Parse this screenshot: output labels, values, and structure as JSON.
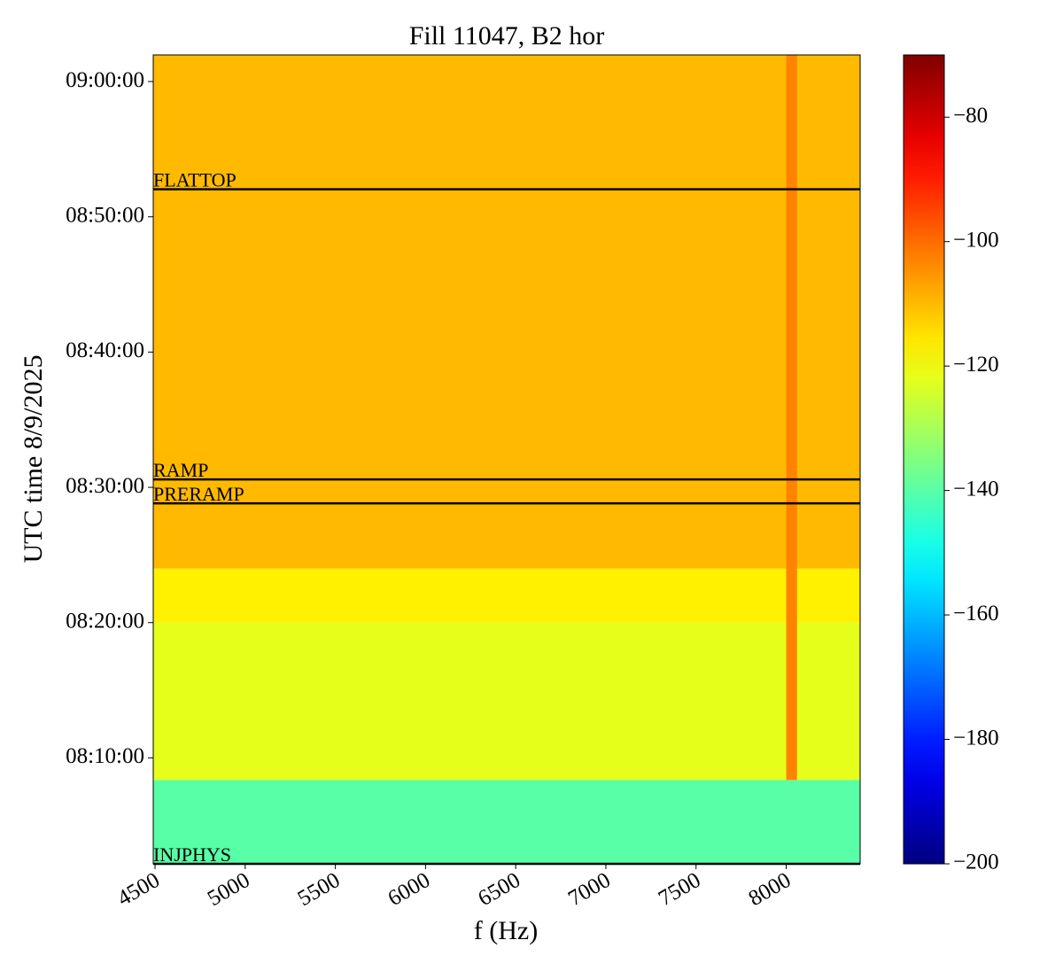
{
  "chart_data": {
    "type": "heatmap",
    "title": "Fill 11047, B2 hor",
    "x_label": "f (Hz)",
    "y_label": "UTC time 8/9/2025",
    "xlim": [
      4490,
      8410
    ],
    "xticks": [
      4500,
      5000,
      5500,
      6000,
      6500,
      7000,
      7500,
      8000
    ],
    "ylim": [
      "08:02:10",
      "09:01:58"
    ],
    "yticks": [
      "08:10:00",
      "08:20:00",
      "08:30:00",
      "08:40:00",
      "08:50:00",
      "09:00:00"
    ],
    "colormap": "jet",
    "clim": [
      -200,
      -70
    ],
    "cticks": [
      {
        "value": -200,
        "label": "−200"
      },
      {
        "value": -180,
        "label": "−180"
      },
      {
        "value": -160,
        "label": "−160"
      },
      {
        "value": -140,
        "label": "−140"
      },
      {
        "value": -120,
        "label": "−120"
      },
      {
        "value": -100,
        "label": "−100"
      },
      {
        "value": -80,
        "label": "−80"
      }
    ],
    "regions": [
      {
        "f": [
          4490,
          8410
        ],
        "t": [
          "08:02:10",
          "08:08:22"
        ],
        "value": -140
      },
      {
        "f": [
          4490,
          8410
        ],
        "t": [
          "08:08:22",
          "08:20:00"
        ],
        "value": -122
      },
      {
        "f": [
          4490,
          8410
        ],
        "t": [
          "08:20:00",
          "08:24:00"
        ],
        "value": -117
      },
      {
        "f": [
          4490,
          8410
        ],
        "t": [
          "08:24:00",
          "09:01:58"
        ],
        "value": -110
      },
      {
        "f": [
          8000,
          8060
        ],
        "t": [
          "08:08:22",
          "09:01:58"
        ],
        "value": -103
      }
    ],
    "events": [
      {
        "label": "FLATTOP",
        "time": "08:52:02"
      },
      {
        "label": "RAMP",
        "time": "08:30:35"
      },
      {
        "label": "PRERAMP",
        "time": "08:28:49"
      },
      {
        "label": "INJPHYS",
        "time": "08:02:10"
      }
    ]
  }
}
